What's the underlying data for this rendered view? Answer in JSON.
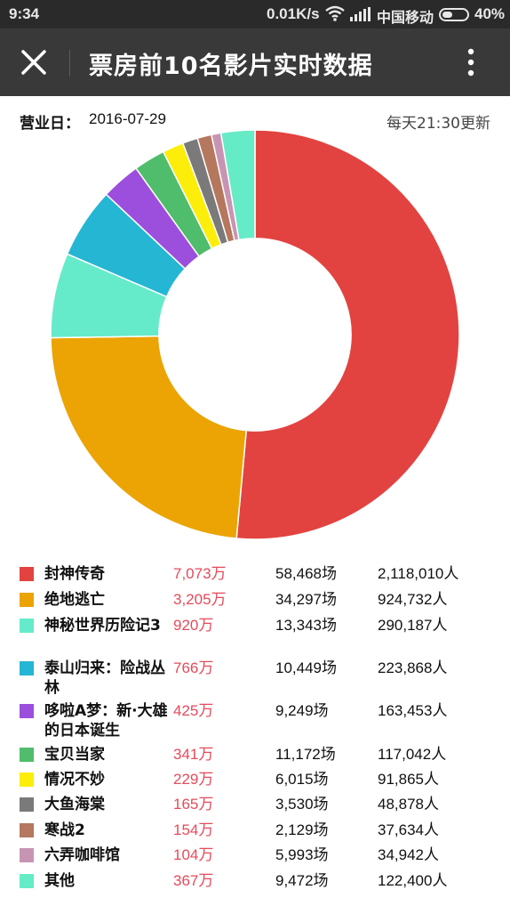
{
  "status_bar": {
    "time": "9:34",
    "network_speed": "0.01K/s",
    "carrier": "中国移动",
    "battery": "40%",
    "icons": [
      "wifi-icon",
      "signal-icon",
      "battery-icon"
    ]
  },
  "app_bar": {
    "title": "票房前10名影片实时数据",
    "icons": [
      "close-icon",
      "more-vert-icon"
    ]
  },
  "info": {
    "date_label": "营业日：",
    "date_value": "2016-07-29",
    "update_note": "每天21:30更新"
  },
  "chart_data": {
    "type": "pie",
    "title": "",
    "categories": [
      "封神传奇",
      "绝地逃亡",
      "神秘世界历险记3",
      "泰山归来：险战丛林",
      "哆啦A梦：新·大雄的日本诞生",
      "宝贝当家",
      "情况不妙",
      "大鱼海棠",
      "寒战2",
      "六弄咖啡馆",
      "其他"
    ],
    "values": [
      7073,
      3205,
      920,
      766,
      425,
      341,
      229,
      165,
      154,
      104,
      367
    ],
    "colors": [
      "#e24340",
      "#eba403",
      "#65ebc9",
      "#24b6d3",
      "#9b4fdc",
      "#4fbd6b",
      "#fcee0a",
      "#7a7a7a",
      "#b5775e",
      "#c795b3",
      "#66ebc7"
    ],
    "inner_radius_ratio": 0.47
  },
  "legend": [
    {
      "name": "封神传奇",
      "box": "7,073万",
      "shows": "58,468场",
      "people": "2,118,010人"
    },
    {
      "name": "绝地逃亡",
      "box": "3,205万",
      "shows": "34,297场",
      "people": "924,732人"
    },
    {
      "name": "神秘世界历险记3",
      "box": "920万",
      "shows": "13,343场",
      "people": "290,187人"
    },
    {
      "name": "泰山归来：险战丛林",
      "box": "766万",
      "shows": "10,449场",
      "people": "223,868人"
    },
    {
      "name": "哆啦A梦：新·大雄的日本诞生",
      "box": "425万",
      "shows": "9,249场",
      "people": "163,453人"
    },
    {
      "name": "宝贝当家",
      "box": "341万",
      "shows": "11,172场",
      "people": "117,042人"
    },
    {
      "name": "情况不妙",
      "box": "229万",
      "shows": "6,015场",
      "people": "91,865人"
    },
    {
      "name": "大鱼海棠",
      "box": "165万",
      "shows": "3,530场",
      "people": "48,878人"
    },
    {
      "name": "寒战2",
      "box": "154万",
      "shows": "2,129场",
      "people": "37,634人"
    },
    {
      "name": "六弄咖啡馆",
      "box": "104万",
      "shows": "5,993场",
      "people": "34,942人"
    },
    {
      "name": "其他",
      "box": "367万",
      "shows": "9,472场",
      "people": "122,400人"
    }
  ]
}
